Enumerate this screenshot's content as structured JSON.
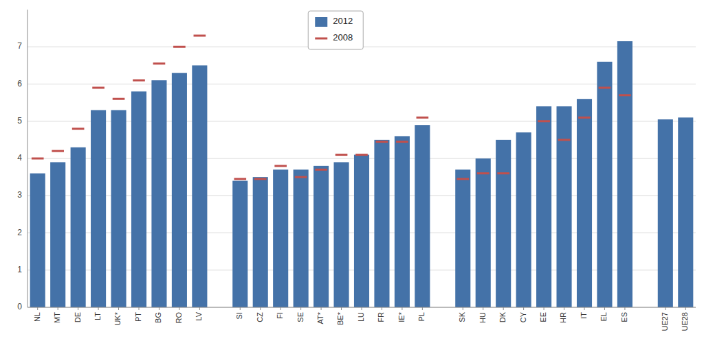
{
  "chart_data": {
    "type": "bar",
    "categories": [
      "NL",
      "MT",
      "DE",
      "LT",
      "UK*",
      "PT",
      "BG",
      "RO",
      "LV",
      null,
      "SI",
      "CZ",
      "FI",
      "SE",
      "AT*",
      "BE*",
      "LU",
      "FR",
      "IE*",
      "PL",
      null,
      "SK",
      "HU",
      "DK",
      "CY",
      "EE",
      "HR",
      "IT",
      "EL",
      "ES",
      null,
      "UE27",
      "UE28"
    ],
    "series": [
      {
        "name": "2012",
        "type": "bar",
        "color": "#4472A8",
        "values": [
          3.6,
          3.9,
          4.3,
          5.3,
          5.3,
          5.8,
          6.1,
          6.3,
          6.5,
          null,
          3.4,
          3.5,
          3.7,
          3.7,
          3.8,
          3.9,
          4.1,
          4.5,
          4.6,
          4.9,
          null,
          3.7,
          4.0,
          4.5,
          4.7,
          5.4,
          5.4,
          5.6,
          6.6,
          7.15,
          null,
          5.05,
          5.1
        ]
      },
      {
        "name": "2008",
        "type": "scatter",
        "marker": "dash",
        "color": "#C0504D",
        "values": [
          4.0,
          4.2,
          4.8,
          5.9,
          5.6,
          6.1,
          6.55,
          7.0,
          7.3,
          null,
          3.45,
          3.45,
          3.8,
          3.5,
          3.7,
          4.1,
          4.1,
          4.45,
          4.45,
          5.1,
          null,
          3.45,
          3.6,
          3.6,
          null,
          5.0,
          4.5,
          5.1,
          5.9,
          5.7,
          null,
          null,
          null
        ]
      }
    ],
    "ylim": [
      0,
      8
    ],
    "yticks": [
      0,
      1,
      2,
      3,
      4,
      5,
      6,
      7
    ],
    "grid": true,
    "legend": "upper center"
  }
}
